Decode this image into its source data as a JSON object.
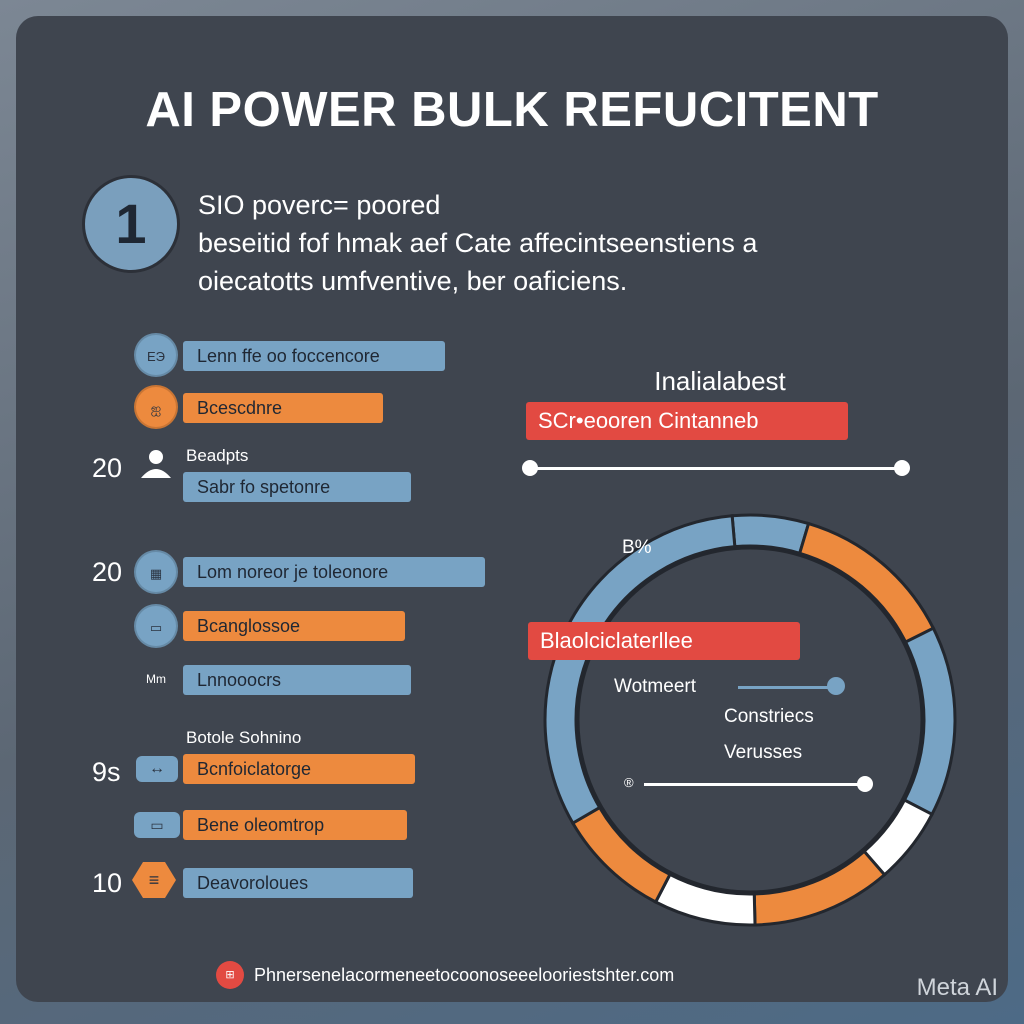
{
  "title": "AI POWER BULK REFUCITENT",
  "step": {
    "number": "1",
    "lines": [
      "SIO poverc= poored",
      "beseitid fof hmak aef Cate affecintseenstiens a",
      "oiecatotts umfventive, ber oaficiens."
    ]
  },
  "list": [
    {
      "num": "",
      "circle": "blue",
      "icon": "doc-icon",
      "icon_text": "ЕЭ",
      "pill": "blue",
      "label": "Lenn ffe oo foccencore",
      "pill_width": 262
    },
    {
      "num": "",
      "circle": "orange",
      "icon": "chart-icon",
      "icon_text": "ஐ",
      "pill": "orange",
      "label": "Bcescdnre",
      "pill_width": 200
    },
    {
      "num": "20",
      "circle": "person",
      "icon": "person-icon",
      "sub_label": "Beadpts",
      "pill": "blue",
      "label": "Sabr fo spetonre",
      "pill_width": 228
    },
    {
      "num": "20",
      "circle": "blue",
      "icon": "grid-icon",
      "icon_text": "▦",
      "pill": "blue",
      "label": "Lom noreor je toleonore",
      "pill_width": 302
    },
    {
      "num": "",
      "circle": "blue",
      "icon": "keyboard-icon",
      "icon_text": "▭",
      "pill": "orange",
      "label": "Bcanglossoe",
      "pill_width": 222
    },
    {
      "num": "",
      "circle": "none",
      "icon": "mm-icon",
      "icon_text": "Mm",
      "pill": "blue",
      "label": "Lnnooocrs",
      "pill_width": 228
    },
    {
      "num": "9s",
      "circle": "blue",
      "icon": "arrow-icon",
      "icon_text": "↔",
      "sub_label": "Botole Sohnino",
      "pill": "orange",
      "label": "Bcnfoiclatorge",
      "pill_width": 232
    },
    {
      "num": "",
      "circle": "blue",
      "icon": "tag-icon",
      "icon_text": "▭",
      "pill": "orange",
      "label": "Bene oleomtrop",
      "pill_width": 224
    },
    {
      "num": "10",
      "circle": "orange-hex",
      "icon": "hex-icon",
      "icon_text": "≡",
      "pill": "blue",
      "label": "Deavoroloues",
      "pill_width": 230
    }
  ],
  "right": {
    "heading": "Inalialabest",
    "banner_top": "SCr•eooren Cintanneb",
    "percent_label": "B%",
    "banner_mid": "Blaolciclaterllee",
    "label_1": "Wotmeert",
    "label_2": "Constriecs",
    "label_3": "Verusses",
    "marker": "®"
  },
  "ring_segments": [
    {
      "color": "#78a3c4",
      "value": 0.06
    },
    {
      "color": "#ed8a3e",
      "value": 0.13
    },
    {
      "color": "#78a3c4",
      "value": 0.15
    },
    {
      "color": "#ffffff",
      "value": 0.06
    },
    {
      "color": "#ed8a3e",
      "value": 0.11
    },
    {
      "color": "#ffffff",
      "value": 0.08
    },
    {
      "color": "#ed8a3e",
      "value": 0.09
    },
    {
      "color": "#78a3c4",
      "value": 0.32
    }
  ],
  "footer": {
    "icon_text": "⊞",
    "text": "Phnersenelacormeneetocoonoseeelooriestshter.com"
  },
  "watermark": "Meta AI"
}
